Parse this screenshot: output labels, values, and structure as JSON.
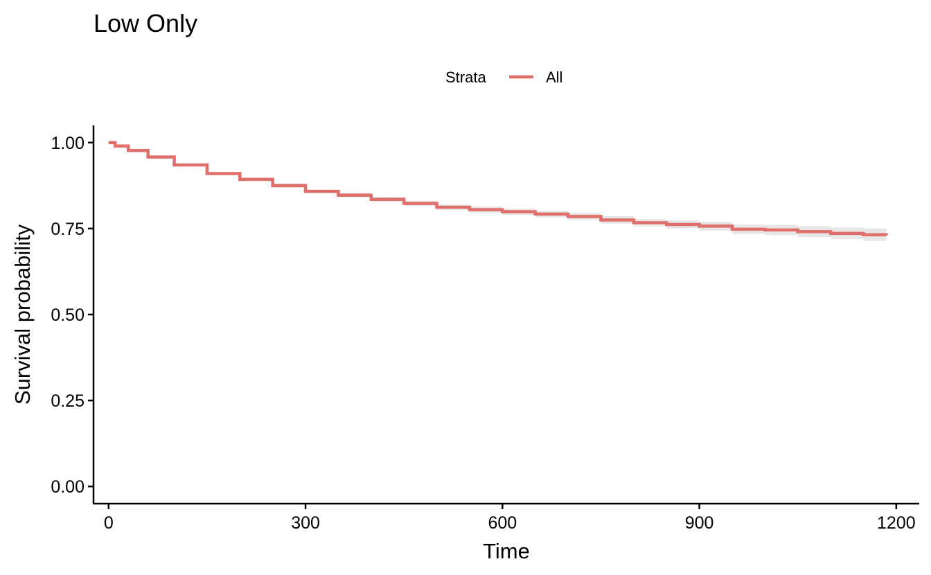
{
  "chart_data": {
    "type": "line",
    "title": "Low Only",
    "xlabel": "Time",
    "ylabel": "Survival probability",
    "xlim": [
      -23,
      1235
    ],
    "ylim": [
      -0.05,
      1.05
    ],
    "x_ticks": [
      0,
      300,
      600,
      900,
      1200
    ],
    "x_tick_labels": [
      "0",
      "300",
      "600",
      "900",
      "1200"
    ],
    "y_ticks": [
      0,
      0.25,
      0.5,
      0.75,
      1.0
    ],
    "y_tick_labels": [
      "0.00",
      "0.25",
      "0.50",
      "0.75",
      "1.00"
    ],
    "grid": false,
    "legend": {
      "title": "Strata",
      "position": "top"
    },
    "series": [
      {
        "name": "All",
        "color": "#e06e6a",
        "x": [
          0,
          10,
          30,
          60,
          100,
          150,
          200,
          250,
          300,
          350,
          400,
          450,
          500,
          550,
          600,
          650,
          700,
          750,
          800,
          850,
          900,
          950,
          1000,
          1050,
          1100,
          1150,
          1185
        ],
        "y": [
          1.0,
          0.99,
          0.977,
          0.958,
          0.935,
          0.91,
          0.893,
          0.875,
          0.858,
          0.847,
          0.835,
          0.823,
          0.812,
          0.805,
          0.799,
          0.792,
          0.785,
          0.775,
          0.767,
          0.762,
          0.757,
          0.748,
          0.746,
          0.741,
          0.736,
          0.732,
          0.731
        ],
        "ci_lower": [
          1.0,
          0.987,
          0.973,
          0.954,
          0.931,
          0.906,
          0.888,
          0.869,
          0.852,
          0.84,
          0.828,
          0.815,
          0.804,
          0.796,
          0.79,
          0.782,
          0.775,
          0.764,
          0.756,
          0.75,
          0.744,
          0.734,
          0.731,
          0.725,
          0.719,
          0.714,
          0.712
        ],
        "ci_upper": [
          1.0,
          0.993,
          0.981,
          0.962,
          0.939,
          0.914,
          0.898,
          0.881,
          0.864,
          0.854,
          0.842,
          0.831,
          0.82,
          0.814,
          0.808,
          0.802,
          0.795,
          0.786,
          0.778,
          0.774,
          0.77,
          0.762,
          0.761,
          0.757,
          0.753,
          0.75,
          0.75
        ]
      }
    ]
  }
}
